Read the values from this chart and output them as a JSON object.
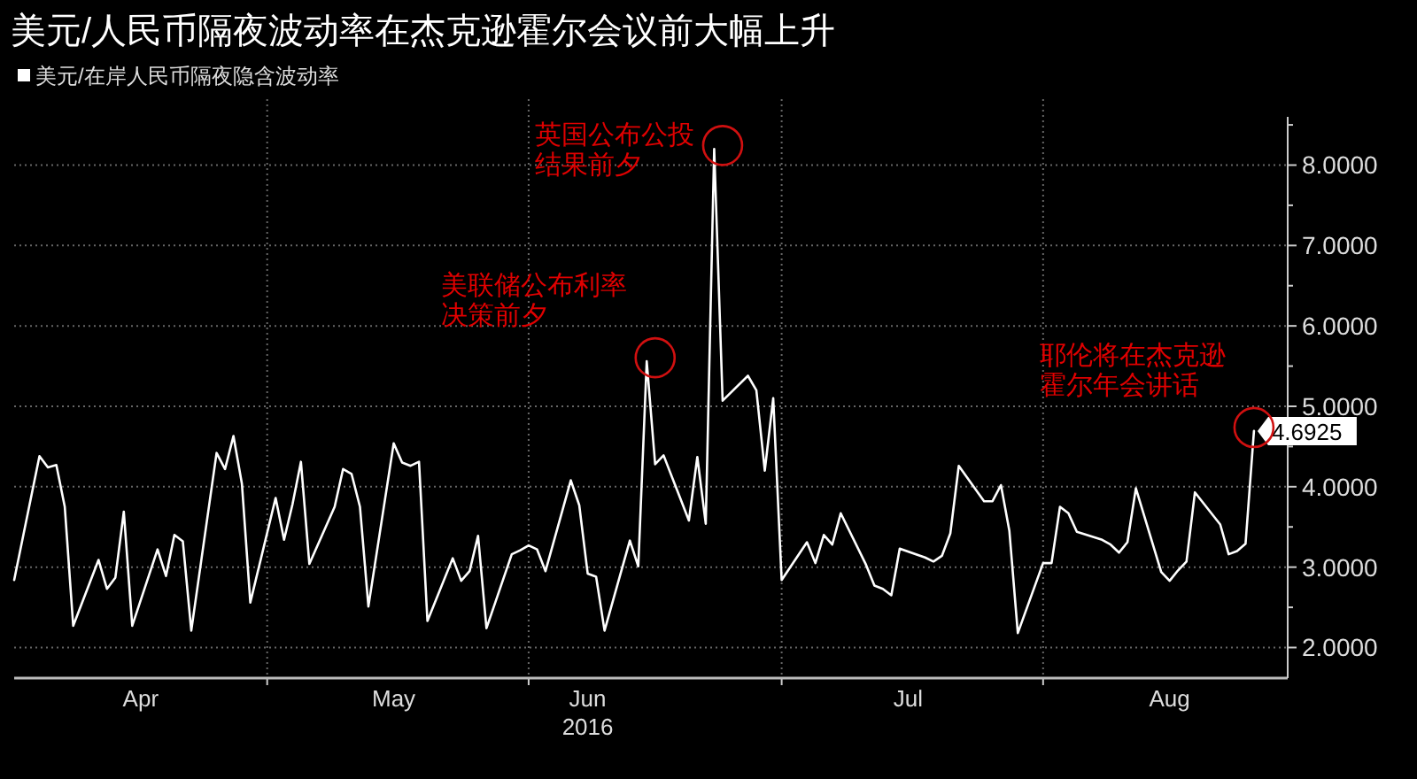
{
  "chart_data": {
    "type": "line",
    "title": "美元/人民币隔夜波动率在杰克逊霍尔会议前大幅上升",
    "x": [
      "2016-04-01",
      "2016-04-04",
      "2016-04-05",
      "2016-04-06",
      "2016-04-07",
      "2016-04-08",
      "2016-04-11",
      "2016-04-12",
      "2016-04-13",
      "2016-04-14",
      "2016-04-15",
      "2016-04-18",
      "2016-04-19",
      "2016-04-20",
      "2016-04-21",
      "2016-04-22",
      "2016-04-25",
      "2016-04-26",
      "2016-04-27",
      "2016-04-28",
      "2016-04-29",
      "2016-05-02",
      "2016-05-03",
      "2016-05-04",
      "2016-05-05",
      "2016-05-06",
      "2016-05-09",
      "2016-05-10",
      "2016-05-11",
      "2016-05-12",
      "2016-05-13",
      "2016-05-16",
      "2016-05-17",
      "2016-05-18",
      "2016-05-19",
      "2016-05-20",
      "2016-05-23",
      "2016-05-24",
      "2016-05-25",
      "2016-05-26",
      "2016-05-27",
      "2016-05-30",
      "2016-05-31",
      "2016-06-01",
      "2016-06-02",
      "2016-06-03",
      "2016-06-06",
      "2016-06-07",
      "2016-06-08",
      "2016-06-09",
      "2016-06-10",
      "2016-06-13",
      "2016-06-14",
      "2016-06-15",
      "2016-06-16",
      "2016-06-17",
      "2016-06-20",
      "2016-06-21",
      "2016-06-22",
      "2016-06-23",
      "2016-06-24",
      "2016-06-27",
      "2016-06-28",
      "2016-06-29",
      "2016-06-30",
      "2016-07-01",
      "2016-07-04",
      "2016-07-05",
      "2016-07-06",
      "2016-07-07",
      "2016-07-08",
      "2016-07-11",
      "2016-07-12",
      "2016-07-13",
      "2016-07-14",
      "2016-07-15",
      "2016-07-18",
      "2016-07-19",
      "2016-07-20",
      "2016-07-21",
      "2016-07-22",
      "2016-07-25",
      "2016-07-26",
      "2016-07-27",
      "2016-07-28",
      "2016-07-29",
      "2016-08-01",
      "2016-08-02",
      "2016-08-03",
      "2016-08-04",
      "2016-08-05",
      "2016-08-08",
      "2016-08-09",
      "2016-08-10",
      "2016-08-11",
      "2016-08-12",
      "2016-08-15",
      "2016-08-16",
      "2016-08-17",
      "2016-08-18",
      "2016-08-19",
      "2016-08-22",
      "2016-08-23",
      "2016-08-24",
      "2016-08-25",
      "2016-08-26"
    ],
    "series": [
      {
        "name": "美元/在岸人民币隔夜隐含波动率",
        "color": "#ffffff",
        "values": [
          2.84,
          4.38,
          4.24,
          4.27,
          3.75,
          2.27,
          3.09,
          2.73,
          2.87,
          3.69,
          2.27,
          3.22,
          2.89,
          3.4,
          3.32,
          2.21,
          4.42,
          4.22,
          4.63,
          4.04,
          2.56,
          3.86,
          3.34,
          3.78,
          4.31,
          3.04,
          3.75,
          4.22,
          4.16,
          3.75,
          2.51,
          4.54,
          4.3,
          4.26,
          4.31,
          2.33,
          3.11,
          2.83,
          2.95,
          3.39,
          2.24,
          3.16,
          3.21,
          3.27,
          3.22,
          2.95,
          4.08,
          3.77,
          2.92,
          2.88,
          2.21,
          3.33,
          3.01,
          5.56,
          4.28,
          4.39,
          3.58,
          4.37,
          3.54,
          8.2,
          5.07,
          5.38,
          5.2,
          4.2,
          5.1,
          2.84,
          3.31,
          3.05,
          3.4,
          3.28,
          3.67,
          3.03,
          2.77,
          2.73,
          2.65,
          3.23,
          3.12,
          3.07,
          3.14,
          3.42,
          4.26,
          3.82,
          3.82,
          4.02,
          3.45,
          2.18,
          3.05,
          3.05,
          3.75,
          3.67,
          3.44,
          3.34,
          3.28,
          3.18,
          3.31,
          3.98,
          2.94,
          2.83,
          2.96,
          3.07,
          3.93,
          3.53,
          3.16,
          3.2,
          3.29,
          4.6925
        ],
        "value_labels": [
          null,
          null,
          null,
          null,
          null,
          null,
          null,
          null,
          null,
          null,
          null,
          null,
          null,
          null,
          null,
          null,
          null,
          null,
          null,
          null,
          null,
          null,
          null,
          null,
          null,
          null,
          null,
          null,
          null,
          null,
          null,
          null,
          null,
          null,
          null,
          null,
          null,
          null,
          null,
          null,
          null,
          null,
          null,
          null,
          null,
          null,
          null,
          null,
          null,
          null,
          null,
          null,
          null,
          null,
          null,
          null,
          null,
          null,
          null,
          null,
          null,
          null,
          null,
          null,
          null,
          null,
          null,
          null,
          null,
          null,
          null,
          null,
          null,
          null,
          null,
          null,
          null,
          null,
          null,
          null,
          null,
          null,
          null,
          null,
          null,
          null,
          null,
          null,
          null,
          null,
          null,
          null,
          null,
          null,
          null,
          null,
          null,
          null,
          null,
          null,
          null,
          null,
          null,
          null,
          null,
          "4.6925"
        ]
      }
    ],
    "xlim": [
      "2016-04-01",
      "2016-08-30"
    ],
    "xticks": [
      {
        "value": "2016-04-16",
        "label": "Apr"
      },
      {
        "value": "2016-05-01",
        "label": null
      },
      {
        "value": "2016-05-16",
        "label": "May"
      },
      {
        "value": "2016-06-01",
        "label": null
      },
      {
        "value": "2016-06-08",
        "label": "Jun\n2016"
      },
      {
        "value": "2016-07-01",
        "label": null
      },
      {
        "value": "2016-07-16",
        "label": "Jul"
      },
      {
        "value": "2016-08-01",
        "label": null
      },
      {
        "value": "2016-08-16",
        "label": "Aug"
      }
    ],
    "ylim": [
      1.62,
      8.6
    ],
    "yticks": [
      {
        "value": 2,
        "label": "2.0000"
      },
      {
        "value": 2.5,
        "label": null
      },
      {
        "value": 3,
        "label": "3.0000"
      },
      {
        "value": 3.5,
        "label": null
      },
      {
        "value": 4,
        "label": "4.0000"
      },
      {
        "value": 4.5,
        "label": null
      },
      {
        "value": 5,
        "label": "5.0000"
      },
      {
        "value": 5.5,
        "label": null
      },
      {
        "value": 6,
        "label": "6.0000"
      },
      {
        "value": 6.5,
        "label": null
      },
      {
        "value": 7,
        "label": "7.0000"
      },
      {
        "value": 7.5,
        "label": null
      },
      {
        "value": 8,
        "label": "8.0000"
      },
      {
        "value": 8.5,
        "label": null
      }
    ],
    "grid": true,
    "legend": "top left",
    "marker": "none",
    "line_style": "solid",
    "annotations": [
      {
        "text": "美联储公布利率决策前夕",
        "x": "2016-06-16",
        "y": 5.56
      },
      {
        "text": "英国公布公投结果前夕",
        "x": "2016-06-24",
        "y": 8.2
      },
      {
        "text": "耶伦将在杰克逊霍尔年会讲话",
        "x": "2016-08-26",
        "y": 4.6925
      }
    ]
  }
}
